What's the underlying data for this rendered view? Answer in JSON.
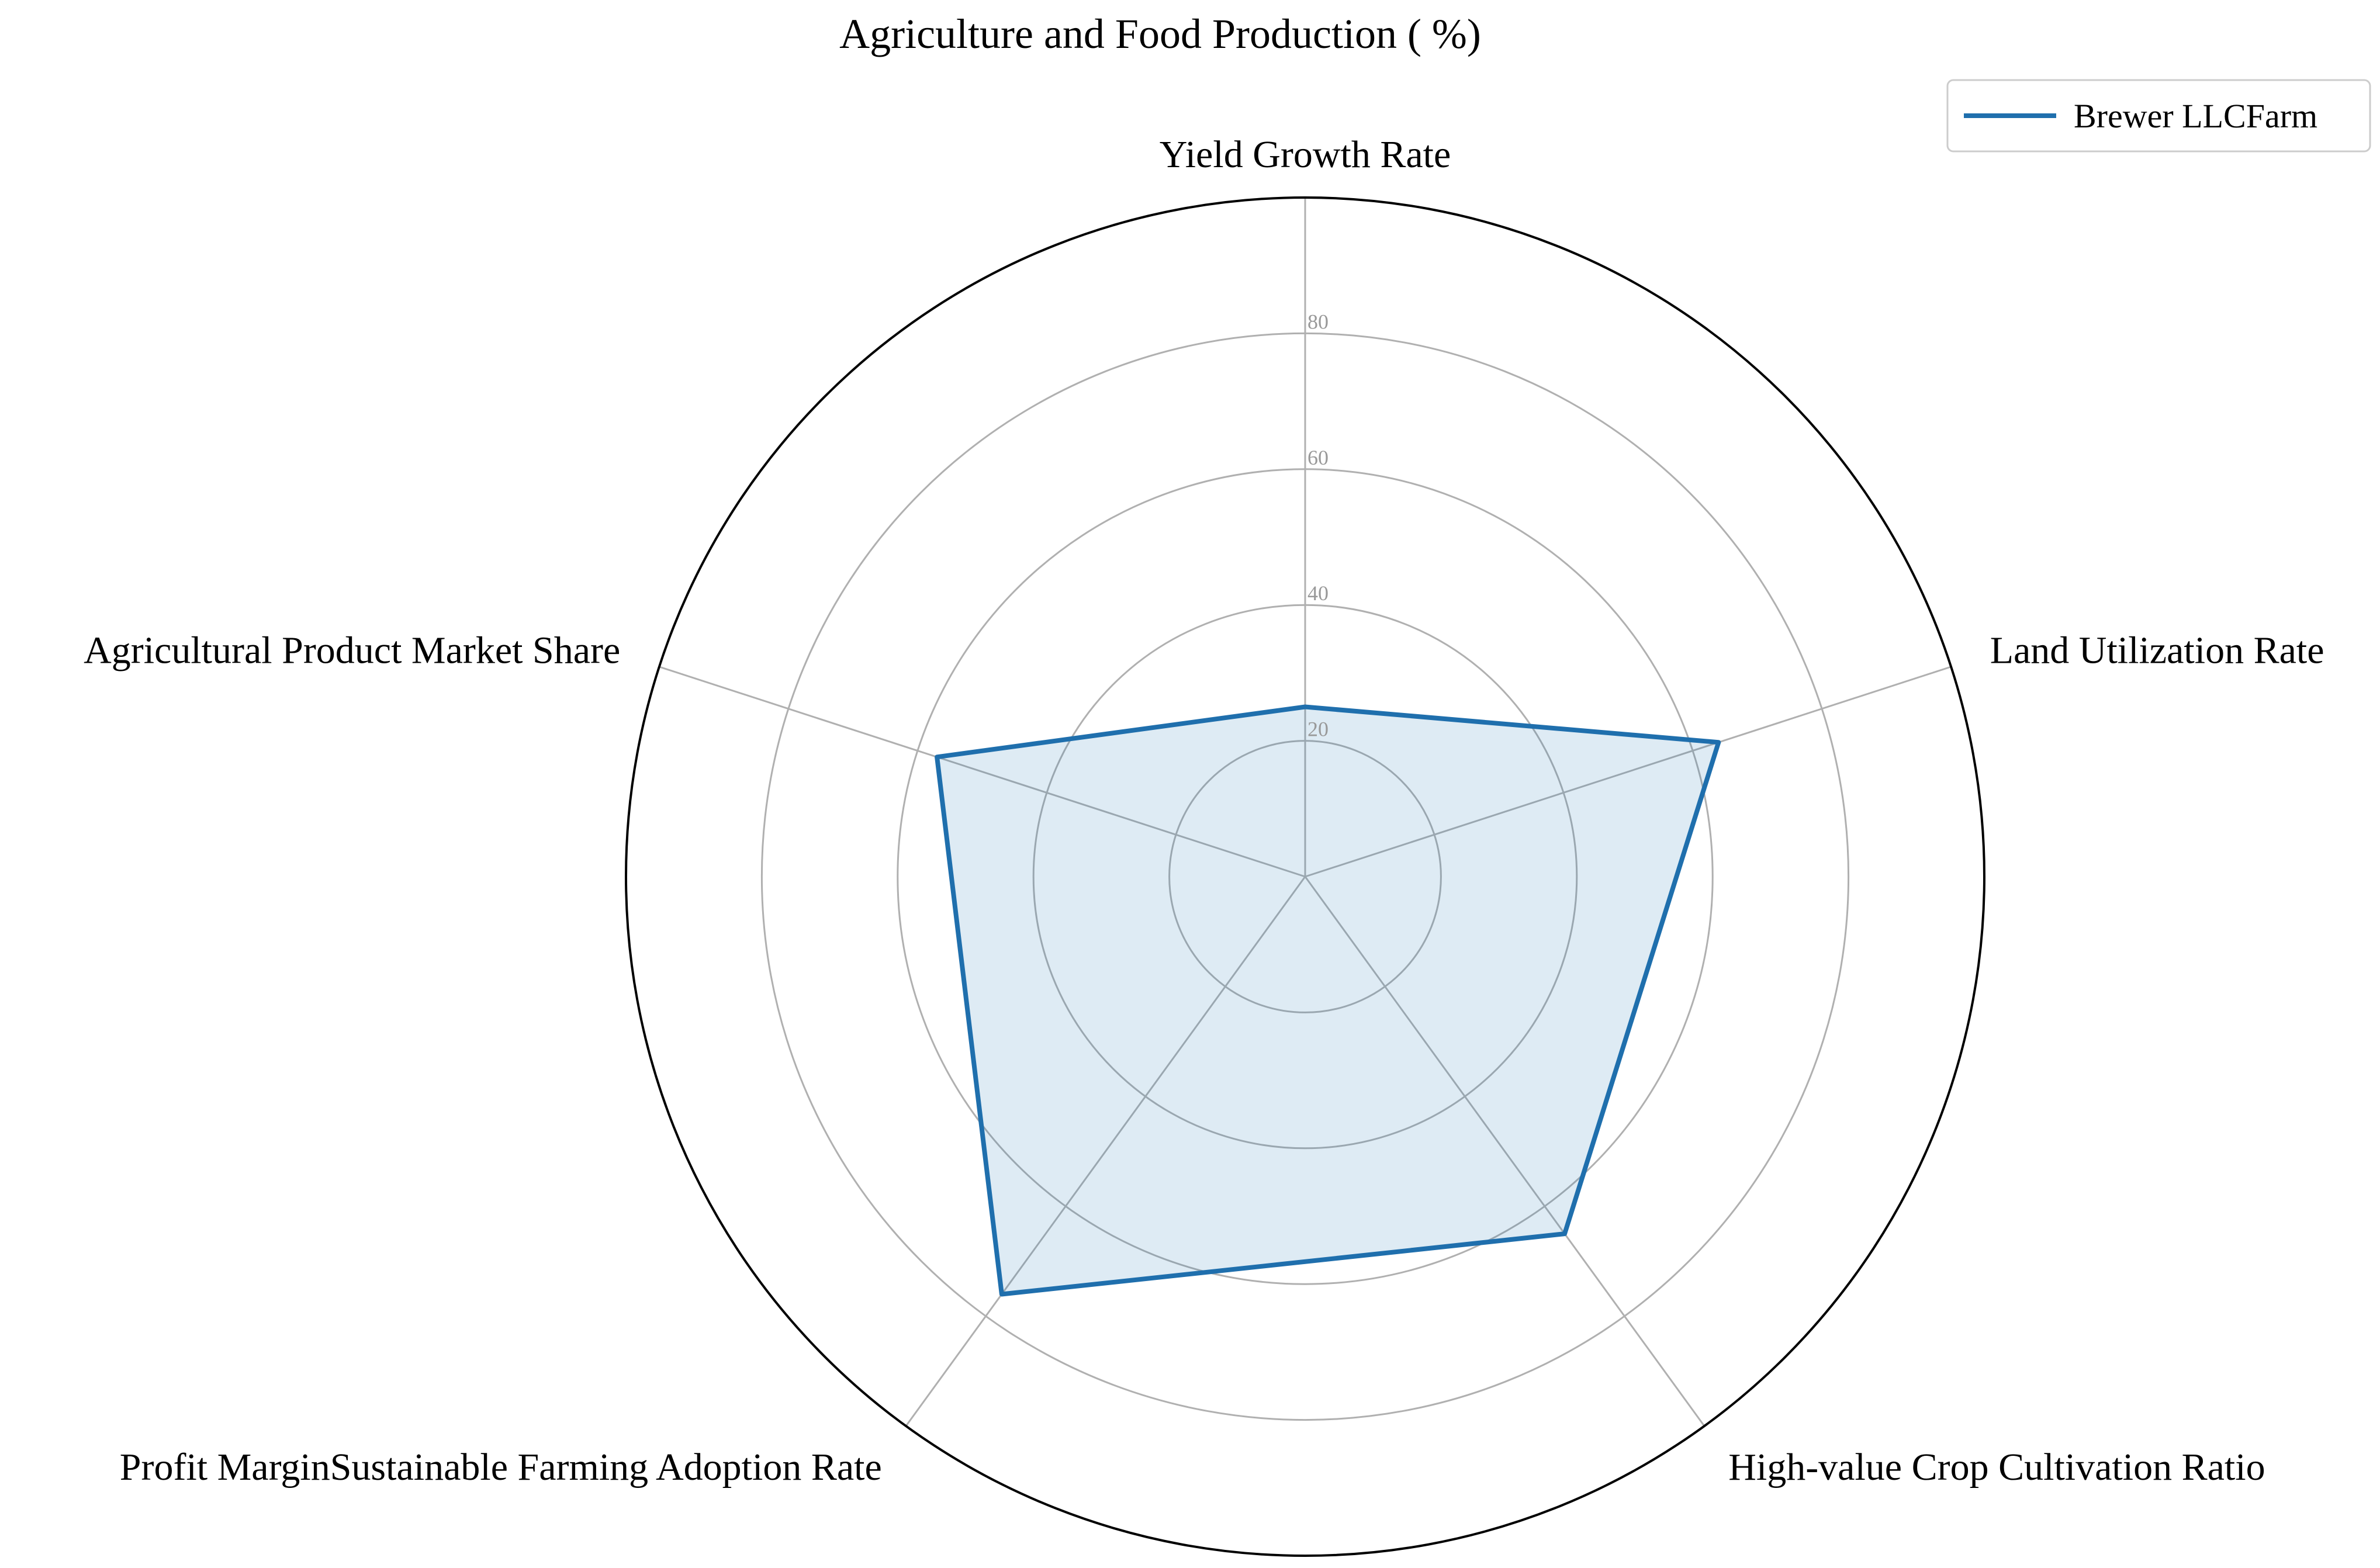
{
  "chart_data": {
    "type": "radar",
    "title": "Agriculture and Food Production ( %)",
    "axes": [
      "Yield Growth Rate",
      "Land Utilization Rate",
      "High-value Crop Cultivation Ratio",
      "Profit MarginSustainable Farming Adoption Rate",
      "Agricultural Product Market Share"
    ],
    "rmax": 100,
    "ticks": [
      20,
      40,
      60,
      80
    ],
    "grid": true,
    "legend_position": "top-right",
    "series": [
      {
        "name": "Brewer LLCFarm",
        "values": [
          25,
          64,
          65,
          76,
          57
        ]
      }
    ],
    "colors": {
      "series_line": "#1f6fad",
      "series_fill": "#1f77b4",
      "grid": "#b0b0b0",
      "frame": "#000000",
      "tick_text": "#999999"
    }
  }
}
